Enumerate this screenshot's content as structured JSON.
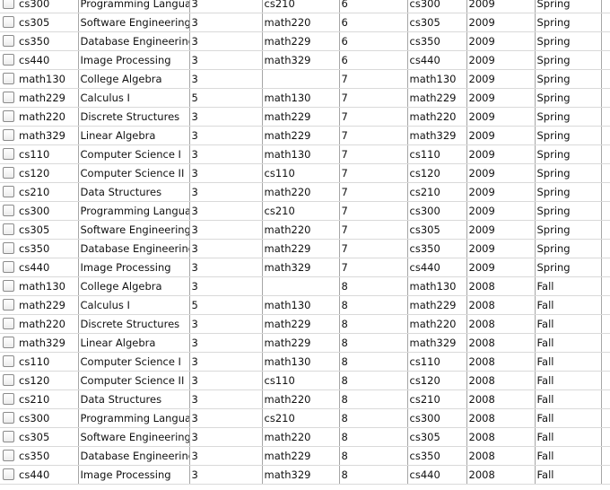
{
  "rows": [
    [
      "cs300",
      "Programming Languages",
      "3",
      "cs210",
      "6",
      "cs300",
      "2009",
      "Spring"
    ],
    [
      "cs305",
      "Software Engineering I",
      "3",
      "math220",
      "6",
      "cs305",
      "2009",
      "Spring"
    ],
    [
      "cs350",
      "Database Engineering",
      "3",
      "math229",
      "6",
      "cs350",
      "2009",
      "Spring"
    ],
    [
      "cs440",
      "Image Processing",
      "3",
      "math329",
      "6",
      "cs440",
      "2009",
      "Spring"
    ],
    [
      "math130",
      "College Algebra",
      "3",
      "",
      "7",
      "math130",
      "2009",
      "Spring"
    ],
    [
      "math229",
      "Calculus I",
      "5",
      "math130",
      "7",
      "math229",
      "2009",
      "Spring"
    ],
    [
      "math220",
      "Discrete Structures",
      "3",
      "math229",
      "7",
      "math220",
      "2009",
      "Spring"
    ],
    [
      "math329",
      "Linear Algebra",
      "3",
      "math229",
      "7",
      "math329",
      "2009",
      "Spring"
    ],
    [
      "cs110",
      "Computer Science I",
      "3",
      "math130",
      "7",
      "cs110",
      "2009",
      "Spring"
    ],
    [
      "cs120",
      "Computer Science II",
      "3",
      "cs110",
      "7",
      "cs120",
      "2009",
      "Spring"
    ],
    [
      "cs210",
      "Data Structures",
      "3",
      "math220",
      "7",
      "cs210",
      "2009",
      "Spring"
    ],
    [
      "cs300",
      "Programming Languages",
      "3",
      "cs210",
      "7",
      "cs300",
      "2009",
      "Spring"
    ],
    [
      "cs305",
      "Software Engineering I",
      "3",
      "math220",
      "7",
      "cs305",
      "2009",
      "Spring"
    ],
    [
      "cs350",
      "Database Engineering",
      "3",
      "math229",
      "7",
      "cs350",
      "2009",
      "Spring"
    ],
    [
      "cs440",
      "Image Processing",
      "3",
      "math329",
      "7",
      "cs440",
      "2009",
      "Spring"
    ],
    [
      "math130",
      "College Algebra",
      "3",
      "",
      "8",
      "math130",
      "2008",
      "Fall"
    ],
    [
      "math229",
      "Calculus I",
      "5",
      "math130",
      "8",
      "math229",
      "2008",
      "Fall"
    ],
    [
      "math220",
      "Discrete Structures",
      "3",
      "math229",
      "8",
      "math220",
      "2008",
      "Fall"
    ],
    [
      "math329",
      "Linear Algebra",
      "3",
      "math229",
      "8",
      "math329",
      "2008",
      "Fall"
    ],
    [
      "cs110",
      "Computer Science I",
      "3",
      "math130",
      "8",
      "cs110",
      "2008",
      "Fall"
    ],
    [
      "cs120",
      "Computer Science II",
      "3",
      "cs110",
      "8",
      "cs120",
      "2008",
      "Fall"
    ],
    [
      "cs210",
      "Data Structures",
      "3",
      "math220",
      "8",
      "cs210",
      "2008",
      "Fall"
    ],
    [
      "cs300",
      "Programming Languages",
      "3",
      "cs210",
      "8",
      "cs300",
      "2008",
      "Fall"
    ],
    [
      "cs305",
      "Software Engineering I",
      "3",
      "math220",
      "8",
      "cs305",
      "2008",
      "Fall"
    ],
    [
      "cs350",
      "Database Engineering",
      "3",
      "math229",
      "8",
      "cs350",
      "2008",
      "Fall"
    ],
    [
      "cs440",
      "Image Processing",
      "3",
      "math329",
      "8",
      "cs440",
      "2008",
      "Fall"
    ]
  ]
}
